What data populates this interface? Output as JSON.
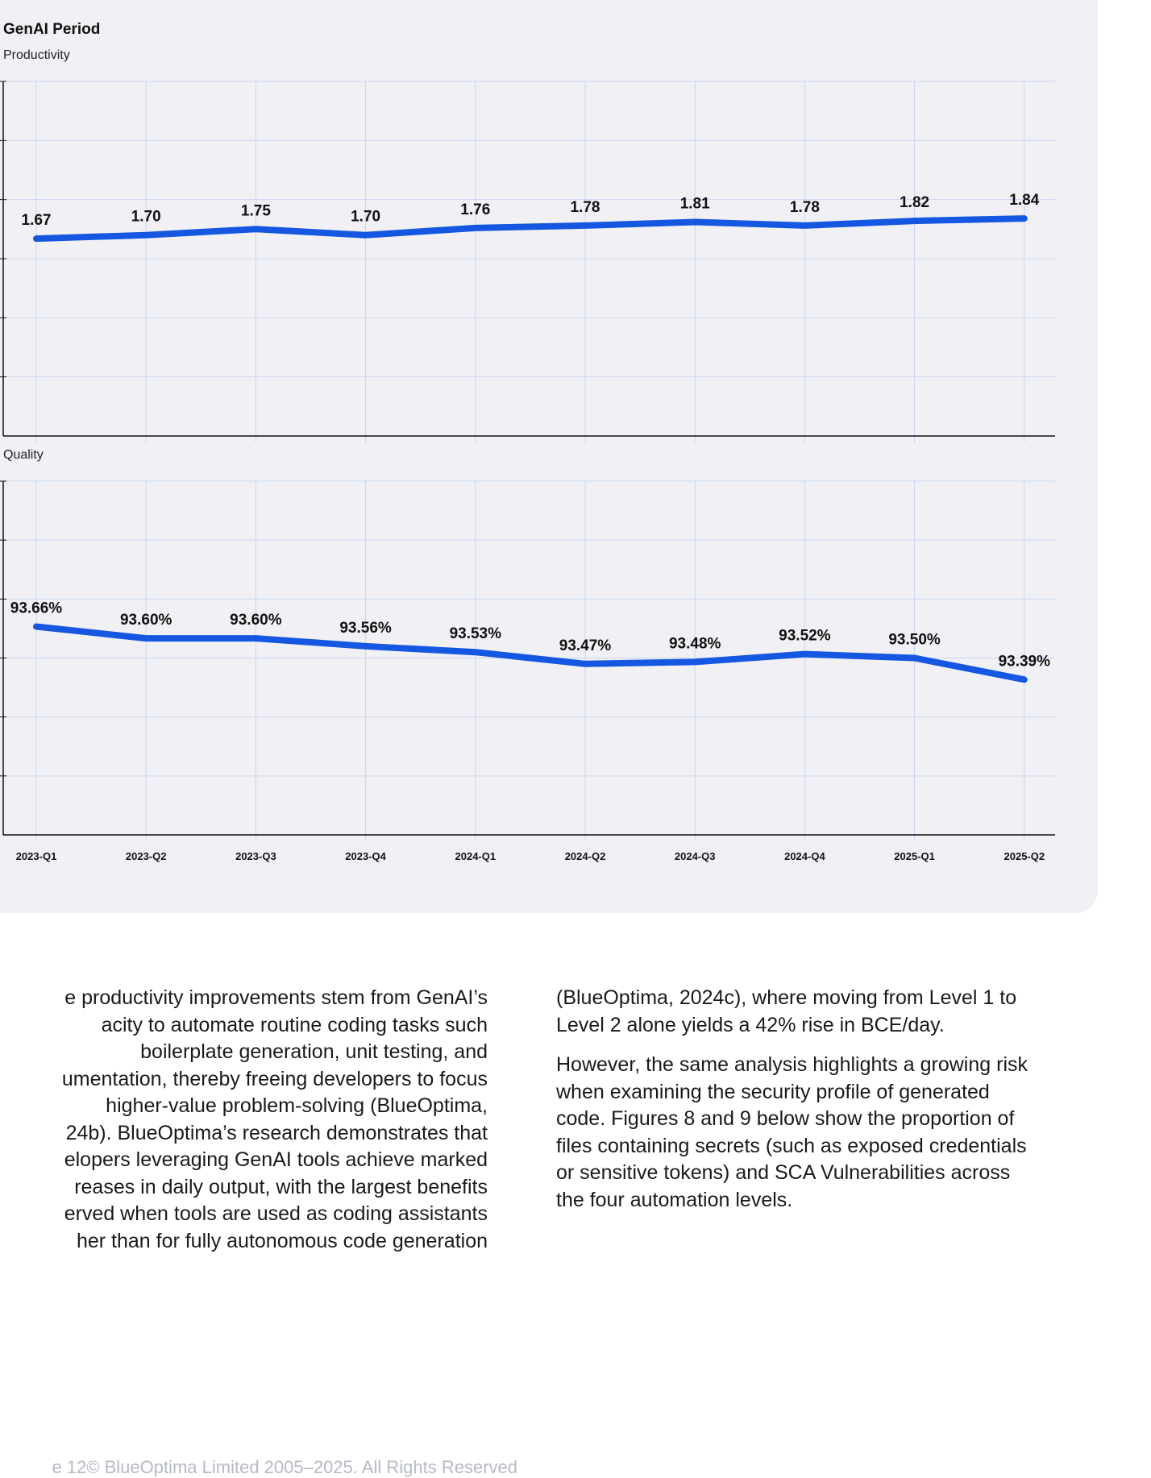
{
  "chart_data": [
    {
      "type": "line",
      "title": "GenAI Period",
      "subtitle": "Productivity",
      "categories": [
        "2023-Q1",
        "2023-Q2",
        "2023-Q3",
        "2023-Q4",
        "2024-Q1",
        "2024-Q2",
        "2024-Q3",
        "2024-Q4",
        "2025-Q1",
        "2025-Q2"
      ],
      "values": [
        1.67,
        1.7,
        1.75,
        1.7,
        1.76,
        1.78,
        1.81,
        1.78,
        1.82,
        1.84
      ],
      "labels": [
        "1.67",
        "1.70",
        "1.75",
        "1.70",
        "1.76",
        "1.78",
        "1.81",
        "1.78",
        "1.82",
        "1.84"
      ],
      "ylim": [
        0,
        3
      ],
      "grid": true,
      "series_color": "#1557e0"
    },
    {
      "type": "line",
      "subtitle": "Quality",
      "categories": [
        "2023-Q1",
        "2023-Q2",
        "2023-Q3",
        "2023-Q4",
        "2024-Q1",
        "2024-Q2",
        "2024-Q3",
        "2024-Q4",
        "2025-Q1",
        "2025-Q2"
      ],
      "values": [
        93.66,
        93.6,
        93.6,
        93.56,
        93.53,
        93.47,
        93.48,
        93.52,
        93.5,
        93.39
      ],
      "labels": [
        "93.66%",
        "93.60%",
        "93.60%",
        "93.56%",
        "93.53%",
        "93.47%",
        "93.48%",
        "93.52%",
        "93.50%",
        "93.39%"
      ],
      "ylim": [
        92.6,
        94.4
      ],
      "grid": true,
      "series_color": "#1557e0"
    }
  ],
  "text": {
    "left_lines": [
      "e productivity improvements stem from GenAI’s",
      "acity to automate routine coding tasks such",
      "boilerplate generation, unit testing, and",
      "umentation, thereby freeing developers to focus",
      "higher-value problem-solving (BlueOptima,",
      "24b). BlueOptima’s research demonstrates that",
      "elopers leveraging GenAI tools achieve marked",
      "reases in daily output, with the largest benefits",
      "erved when tools are used as coding assistants",
      "her than for fully autonomous code generation"
    ],
    "right_p1_lines": [
      "(BlueOptima, 2024c), where moving from Level 1 to",
      "Level 2 alone yields a 42% rise in BCE/day."
    ],
    "right_p2_lines": [
      "However, the same analysis highlights a growing risk",
      "when examining the security profile of generated",
      "code. Figures 8 and 9 below show the proportion of",
      "files containing secrets (such as exposed credentials",
      "or sensitive tokens) and SCA Vulnerabilities across",
      "the four automation levels."
    ]
  },
  "footer": {
    "page": "e 12",
    "copyright": "© BlueOptima Limited 2005–2025. All Rights Reserved"
  }
}
